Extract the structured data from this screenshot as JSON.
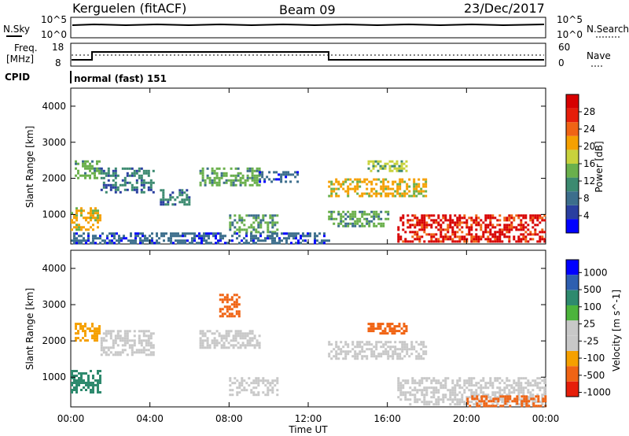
{
  "header": {
    "title": "Kerguelen (fitACF)",
    "beam": "Beam 09",
    "date": "23/Dec/2017"
  },
  "noise_panel": {
    "left_label": "N.Sky",
    "right_label": "N.Search",
    "left_ticks": [
      "10^5",
      "10^0"
    ],
    "right_ticks": [
      "10^5",
      "10^0"
    ]
  },
  "freq_panel": {
    "left_label_1": "Freq.",
    "left_label_2": "[MHz]",
    "right_label": "Nave",
    "left_ticks": [
      "18",
      "8"
    ],
    "right_ticks": [
      "60",
      "0"
    ]
  },
  "cpid": {
    "label": "CPID",
    "mode": "normal (fast) 151"
  },
  "x_axis": {
    "label": "Time UT",
    "ticks": [
      "00:00",
      "04:00",
      "08:00",
      "12:00",
      "16:00",
      "20:00",
      "00:00"
    ]
  },
  "colors": {
    "power_scale": [
      "#0000ff",
      "#2a3fa0",
      "#3c6e8c",
      "#3c8a70",
      "#6ab04c",
      "#c8d23c",
      "#f5a000",
      "#f06414",
      "#e61e0a",
      "#d70000"
    ],
    "velocity_scale": [
      "#0000ff",
      "#2e5fb0",
      "#2e8a6e",
      "#4cb43c",
      "#c8c8c8",
      "#c8c8c8",
      "#f5a000",
      "#f06414",
      "#e61e0a"
    ]
  },
  "chart_data": [
    {
      "type": "heatmap",
      "title": "",
      "xlabel": "Time UT",
      "ylabel": "Slant Range [km]",
      "xlim": [
        0,
        24
      ],
      "ylim": [
        180,
        4500
      ],
      "yticks": [
        "1000",
        "2000",
        "3000",
        "4000"
      ],
      "colorbar": {
        "label": "Power [dB]",
        "ticks": [
          "4",
          "8",
          "12",
          "16",
          "20",
          "24",
          "28"
        ],
        "range": [
          0,
          30
        ]
      },
      "regions": [
        {
          "t": [
            0.2,
            1.5
          ],
          "r": [
            2000,
            2500
          ],
          "v": 12
        },
        {
          "t": [
            1.5,
            4.2
          ],
          "r": [
            1600,
            2300
          ],
          "v": 10
        },
        {
          "t": [
            4.5,
            6.0
          ],
          "r": [
            1300,
            1700
          ],
          "v": 10
        },
        {
          "t": [
            0.0,
            1.5
          ],
          "r": [
            600,
            1200
          ],
          "v": 18
        },
        {
          "t": [
            6.5,
            9.5
          ],
          "r": [
            1800,
            2300
          ],
          "v": 12
        },
        {
          "t": [
            9.5,
            11.5
          ],
          "r": [
            1900,
            2200
          ],
          "v": 8
        },
        {
          "t": [
            8.0,
            10.5
          ],
          "r": [
            500,
            1000
          ],
          "v": 12
        },
        {
          "t": [
            13.0,
            18.0
          ],
          "r": [
            1500,
            2000
          ],
          "v": 20
        },
        {
          "t": [
            13.0,
            16.0
          ],
          "r": [
            700,
            1100
          ],
          "v": 14
        },
        {
          "t": [
            16.5,
            24.0
          ],
          "r": [
            250,
            1000
          ],
          "v": 28
        },
        {
          "t": [
            15.0,
            17.0
          ],
          "r": [
            2200,
            2500
          ],
          "v": 16
        },
        {
          "t": [
            0.0,
            13.0
          ],
          "r": [
            200,
            500
          ],
          "v": 6
        }
      ]
    },
    {
      "type": "heatmap",
      "title": "",
      "xlabel": "Time UT",
      "ylabel": "Slant Range [km]",
      "xlim": [
        0,
        24
      ],
      "ylim": [
        180,
        4500
      ],
      "yticks": [
        "1000",
        "2000",
        "3000",
        "4000"
      ],
      "colorbar": {
        "label": "Velocity [m s^-1]",
        "ticks": [
          "1000",
          "500",
          "100",
          "25",
          "-25",
          "-100",
          "-500",
          "-1000"
        ]
      },
      "regions": [
        {
          "t": [
            0.2,
            1.5
          ],
          "r": [
            2000,
            2500
          ],
          "v": -100
        },
        {
          "t": [
            1.5,
            4.2
          ],
          "r": [
            1600,
            2300
          ],
          "v": 0
        },
        {
          "t": [
            0.0,
            1.5
          ],
          "r": [
            600,
            1200
          ],
          "v": 100
        },
        {
          "t": [
            6.5,
            9.5
          ],
          "r": [
            1800,
            2300
          ],
          "v": 0
        },
        {
          "t": [
            8.0,
            10.5
          ],
          "r": [
            500,
            1000
          ],
          "v": 0
        },
        {
          "t": [
            13.0,
            18.0
          ],
          "r": [
            1500,
            2000
          ],
          "v": 0
        },
        {
          "t": [
            16.5,
            24.0
          ],
          "r": [
            250,
            1000
          ],
          "v": 0
        },
        {
          "t": [
            20.0,
            24.0
          ],
          "r": [
            200,
            500
          ],
          "v": -300
        },
        {
          "t": [
            15.0,
            17.0
          ],
          "r": [
            2200,
            2500
          ],
          "v": -300
        },
        {
          "t": [
            7.5,
            8.5
          ],
          "r": [
            2700,
            3300
          ],
          "v": -500
        }
      ]
    }
  ]
}
